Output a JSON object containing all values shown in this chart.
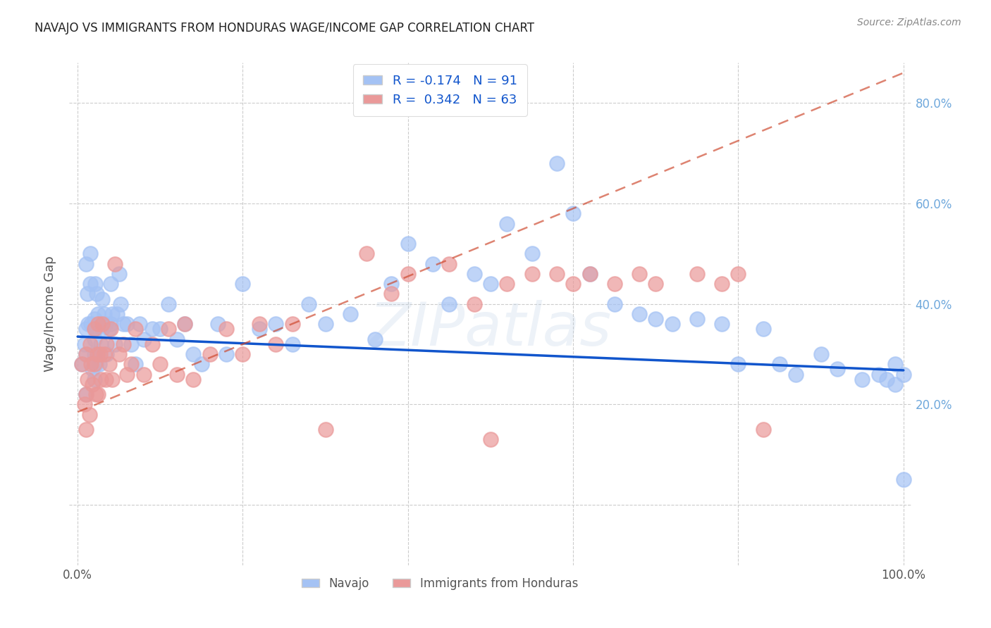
{
  "title": "NAVAJO VS IMMIGRANTS FROM HONDURAS WAGE/INCOME GAP CORRELATION CHART",
  "source": "Source: ZipAtlas.com",
  "ylabel": "Wage/Income Gap",
  "xlim": [
    -0.01,
    1.01
  ],
  "ylim": [
    -0.12,
    0.88
  ],
  "xticks": [
    0.0,
    0.2,
    0.4,
    0.6,
    0.8,
    1.0
  ],
  "xticklabels": [
    "0.0%",
    "",
    "",
    "",
    "",
    "100.0%"
  ],
  "ytick_positions": [
    0.0,
    0.2,
    0.4,
    0.6,
    0.8
  ],
  "yticklabels_right": [
    "",
    "20.0%",
    "40.0%",
    "60.0%",
    "80.0%"
  ],
  "navajo_color": "#a4c2f4",
  "honduras_color": "#ea9999",
  "navajo_line_color": "#1155cc",
  "honduras_line_color": "#cc4125",
  "background_color": "#ffffff",
  "grid_color": "#cccccc",
  "R_navajo": -0.174,
  "N_navajo": 91,
  "R_honduras": 0.342,
  "N_honduras": 63,
  "legend_navajo": "Navajo",
  "legend_honduras": "Immigrants from Honduras",
  "watermark": "ZIPatlas",
  "navajo_line_x0": 0.0,
  "navajo_line_y0": 0.335,
  "navajo_line_x1": 1.0,
  "navajo_line_y1": 0.268,
  "honduras_line_x0": 0.0,
  "honduras_line_y0": 0.185,
  "honduras_line_x1": 1.0,
  "honduras_line_y1": 0.86,
  "navajo_scatter_x": [
    0.005,
    0.008,
    0.01,
    0.01,
    0.01,
    0.01,
    0.012,
    0.013,
    0.015,
    0.015,
    0.016,
    0.018,
    0.02,
    0.02,
    0.02,
    0.02,
    0.021,
    0.022,
    0.022,
    0.023,
    0.025,
    0.025,
    0.026,
    0.027,
    0.028,
    0.03,
    0.03,
    0.032,
    0.034,
    0.035,
    0.038,
    0.04,
    0.04,
    0.042,
    0.045,
    0.048,
    0.05,
    0.052,
    0.055,
    0.06,
    0.065,
    0.07,
    0.075,
    0.08,
    0.09,
    0.1,
    0.11,
    0.12,
    0.13,
    0.14,
    0.15,
    0.17,
    0.18,
    0.2,
    0.22,
    0.24,
    0.26,
    0.28,
    0.3,
    0.33,
    0.36,
    0.38,
    0.4,
    0.43,
    0.45,
    0.48,
    0.5,
    0.52,
    0.55,
    0.58,
    0.6,
    0.62,
    0.65,
    0.68,
    0.7,
    0.72,
    0.75,
    0.78,
    0.8,
    0.83,
    0.85,
    0.87,
    0.9,
    0.92,
    0.95,
    0.97,
    0.98,
    0.99,
    0.99,
    1.0,
    1.0
  ],
  "navajo_scatter_y": [
    0.28,
    0.32,
    0.48,
    0.35,
    0.22,
    0.3,
    0.42,
    0.36,
    0.44,
    0.5,
    0.36,
    0.27,
    0.37,
    0.33,
    0.25,
    0.3,
    0.44,
    0.35,
    0.28,
    0.42,
    0.38,
    0.3,
    0.28,
    0.36,
    0.32,
    0.41,
    0.35,
    0.38,
    0.36,
    0.3,
    0.35,
    0.44,
    0.36,
    0.38,
    0.32,
    0.38,
    0.46,
    0.4,
    0.36,
    0.36,
    0.32,
    0.28,
    0.36,
    0.33,
    0.35,
    0.35,
    0.4,
    0.33,
    0.36,
    0.3,
    0.28,
    0.36,
    0.3,
    0.44,
    0.35,
    0.36,
    0.32,
    0.4,
    0.36,
    0.38,
    0.33,
    0.44,
    0.52,
    0.48,
    0.4,
    0.46,
    0.44,
    0.56,
    0.5,
    0.68,
    0.58,
    0.46,
    0.4,
    0.38,
    0.37,
    0.36,
    0.37,
    0.36,
    0.28,
    0.35,
    0.28,
    0.26,
    0.3,
    0.27,
    0.25,
    0.26,
    0.25,
    0.24,
    0.28,
    0.26,
    0.05
  ],
  "honduras_scatter_x": [
    0.005,
    0.008,
    0.01,
    0.01,
    0.01,
    0.012,
    0.014,
    0.015,
    0.016,
    0.018,
    0.02,
    0.02,
    0.022,
    0.024,
    0.025,
    0.025,
    0.027,
    0.028,
    0.03,
    0.032,
    0.034,
    0.035,
    0.038,
    0.04,
    0.042,
    0.045,
    0.05,
    0.055,
    0.06,
    0.065,
    0.07,
    0.08,
    0.09,
    0.1,
    0.11,
    0.12,
    0.13,
    0.14,
    0.16,
    0.18,
    0.2,
    0.22,
    0.24,
    0.26,
    0.3,
    0.35,
    0.38,
    0.4,
    0.45,
    0.48,
    0.5,
    0.52,
    0.55,
    0.58,
    0.6,
    0.62,
    0.65,
    0.68,
    0.7,
    0.75,
    0.78,
    0.8,
    0.83
  ],
  "honduras_scatter_y": [
    0.28,
    0.2,
    0.3,
    0.22,
    0.15,
    0.25,
    0.18,
    0.32,
    0.28,
    0.24,
    0.35,
    0.28,
    0.22,
    0.3,
    0.36,
    0.22,
    0.3,
    0.25,
    0.36,
    0.3,
    0.25,
    0.32,
    0.28,
    0.35,
    0.25,
    0.48,
    0.3,
    0.32,
    0.26,
    0.28,
    0.35,
    0.26,
    0.32,
    0.28,
    0.35,
    0.26,
    0.36,
    0.25,
    0.3,
    0.35,
    0.3,
    0.36,
    0.32,
    0.36,
    0.15,
    0.5,
    0.42,
    0.46,
    0.48,
    0.4,
    0.13,
    0.44,
    0.46,
    0.46,
    0.44,
    0.46,
    0.44,
    0.46,
    0.44,
    0.46,
    0.44,
    0.46,
    0.15
  ]
}
